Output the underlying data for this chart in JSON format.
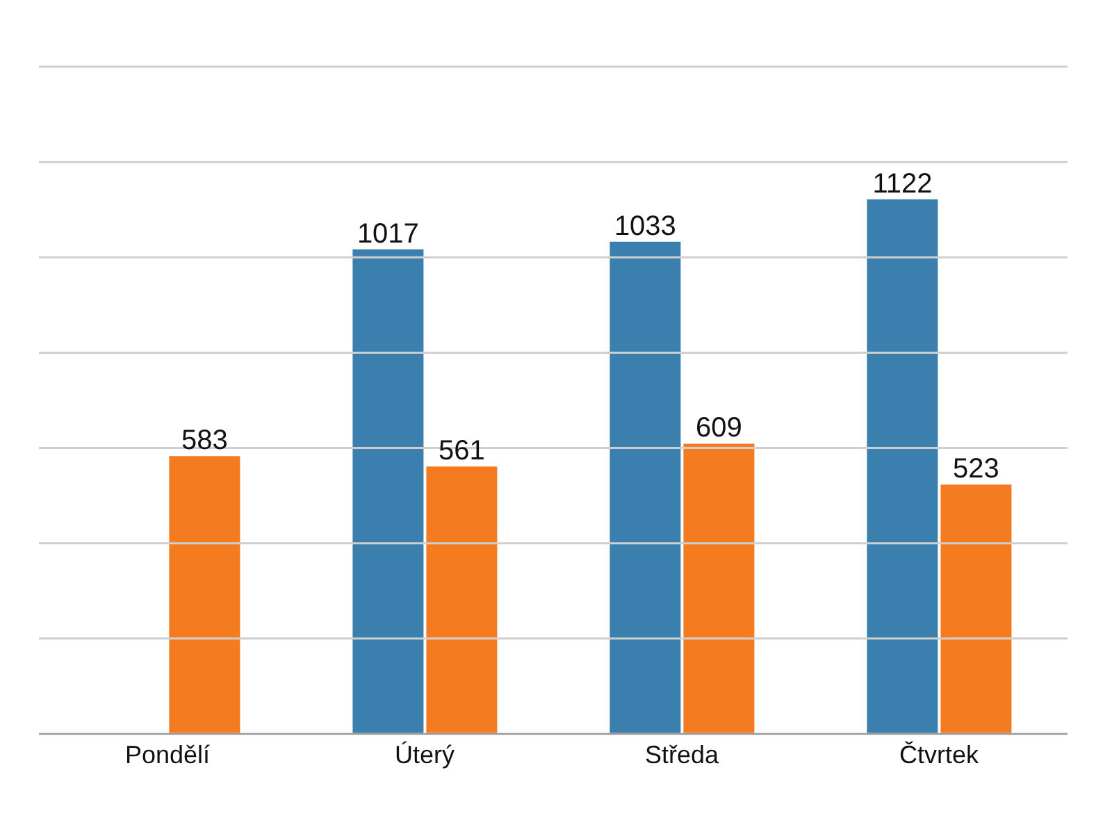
{
  "chart_data": {
    "type": "bar",
    "categories": [
      "Pondělí",
      "Úterý",
      "Středa",
      "Čtvrtek"
    ],
    "series": [
      {
        "color": "#3a7fad",
        "values": [
          null,
          1017,
          1033,
          1122
        ]
      },
      {
        "color": "#f47b20",
        "values": [
          583,
          561,
          609,
          523
        ]
      }
    ],
    "ylim": [
      0,
      1400
    ],
    "yticks": [
      {
        "value": 0,
        "label": null
      },
      {
        "value": 200,
        "label": null
      },
      {
        "value": 400,
        "label": null
      },
      {
        "value": 600,
        "label": null
      },
      {
        "value": 800,
        "label": null
      },
      {
        "value": 1000,
        "label": null
      },
      {
        "value": 1200,
        "label": null
      },
      {
        "value": 1400,
        "label": null
      }
    ],
    "grid": "y",
    "tick_labels": "x",
    "data_labels": true,
    "legend": false
  }
}
